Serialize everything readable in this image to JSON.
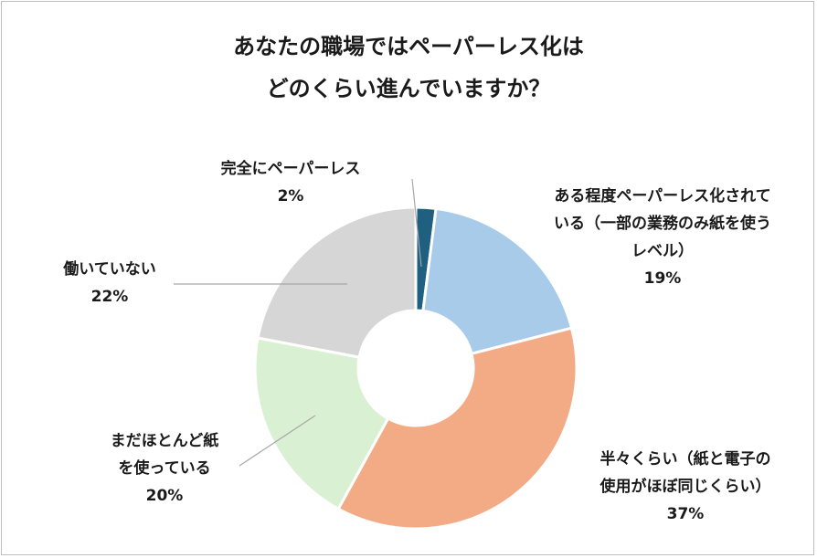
{
  "chart_data": {
    "type": "pie",
    "variant": "donut",
    "title": [
      "あなたの職場ではペーパーレス化は",
      "どのくらい進んでいますか？"
    ],
    "slices": [
      {
        "label": [
          "完全にペーパーレス"
        ],
        "value": 2,
        "pct_label": "2%",
        "color": "#1f5f7f"
      },
      {
        "label": [
          "ある程度ペーパーレス化されて",
          "いる（一部の業務のみ紙を使う",
          "レベル）"
        ],
        "value": 19,
        "pct_label": "19%",
        "color": "#a9cbea"
      },
      {
        "label": [
          "半々くらい（紙と電子の",
          "使用がほぼ同じくらい）"
        ],
        "value": 37,
        "pct_label": "37%",
        "color": "#f2ab85"
      },
      {
        "label": [
          "まだほとんど紙",
          "を使っている"
        ],
        "value": 20,
        "pct_label": "20%",
        "color": "#daf0d3"
      },
      {
        "label": [
          "働いていない"
        ],
        "value": 22,
        "pct_label": "22%",
        "color": "#d6d6d6"
      }
    ]
  }
}
